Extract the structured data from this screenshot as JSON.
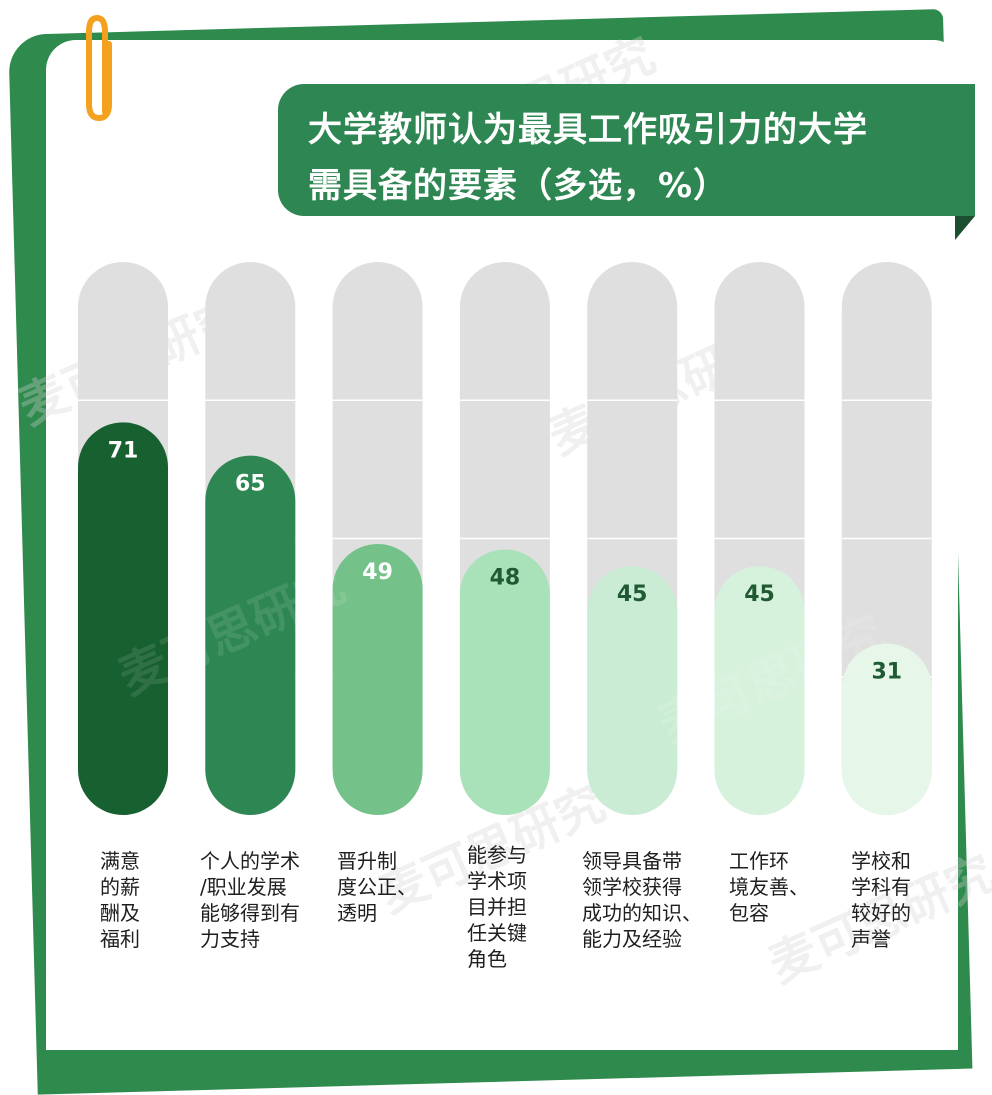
{
  "title": {
    "line1": "大学教师认为最具工作吸引力的大学",
    "line2": "需具备的要素（多选，%）"
  },
  "watermark": "麦可思研究",
  "colors": {
    "card_green": "#2f8a4e",
    "title_bg": "#2e8752",
    "track_gray": "#dfdfdf",
    "clip_orange": "#f3a11f"
  },
  "chart_data": {
    "type": "bar",
    "orientation": "vertical",
    "categories": [
      "满意\n的薪\n酬及\n福利",
      "个人的学术\n/职业发展\n能够得到有\n力支持",
      "晋升制\n度公正、\n透明",
      "能参与\n学术项\n目并担\n任关键\n角色",
      "领导具备带\n领学校获得\n成功的知识、\n能力及经验",
      "工作环\n境友善、\n包容",
      "学校和\n学科有\n较好的\n声誉"
    ],
    "values": [
      71,
      65,
      49,
      48,
      45,
      45,
      31
    ],
    "bar_colors": [
      "#17602f",
      "#2e8752",
      "#74c28a",
      "#a9e1b9",
      "#cbecd4",
      "#d6f1dc",
      "#e6f6e9"
    ],
    "label_colors": [
      "#ffffff",
      "#ffffff",
      "#ffffff",
      "#1f5a33",
      "#1f5a33",
      "#1f5a33",
      "#1f5a33"
    ],
    "ylim": [
      0,
      100
    ],
    "grid": true,
    "legend": "none",
    "data_labels": true
  }
}
